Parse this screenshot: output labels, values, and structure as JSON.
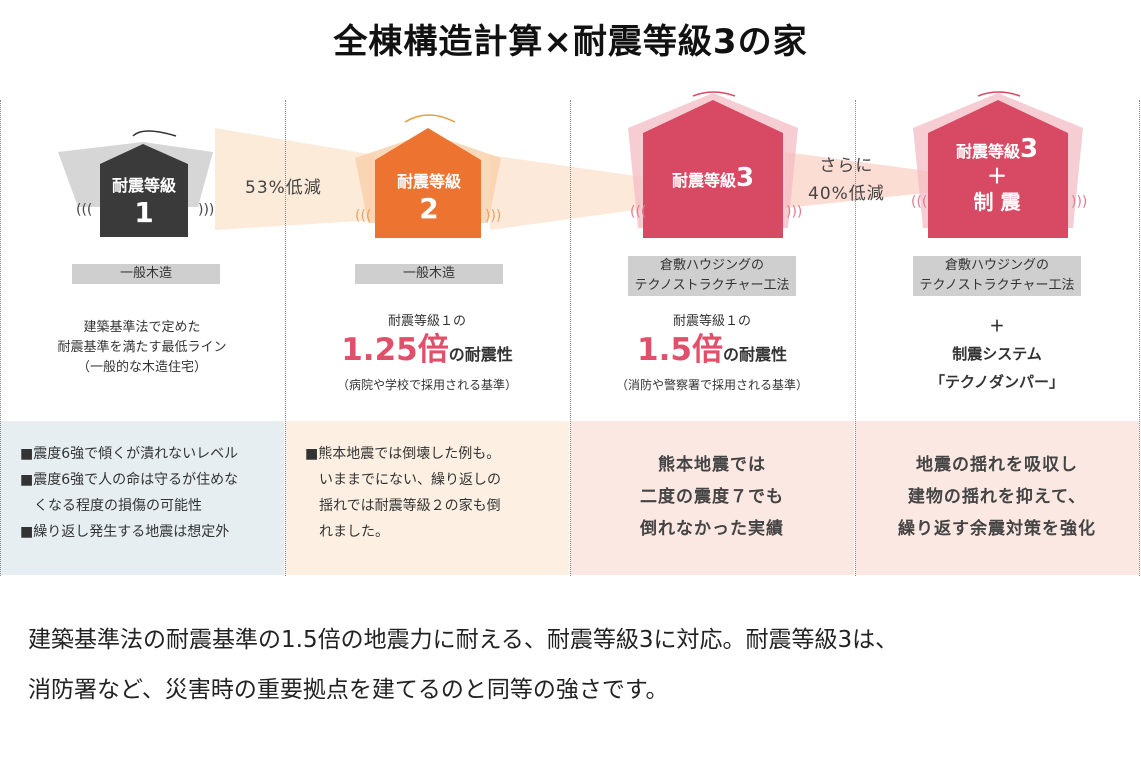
{
  "title": "全棟構造計算×耐震等級3の家",
  "colors": {
    "grade1": "#3a3a3a",
    "grade2": "#ec7330",
    "grade3": "#d84a63",
    "panel1": "#e6eef2",
    "panel2": "#fdf0e3",
    "panel3": "#fbe8e3"
  },
  "arrows": {
    "a1": "53%低減",
    "a2_l1": "さらに",
    "a2_l2": "40%低減"
  },
  "columns": [
    {
      "house_l1": "耐震等級",
      "house_l2": "1",
      "label": "一般木造",
      "desc": [
        "建築基準法で定めた",
        "耐震基準を満たす最低ライン",
        "（一般的な木造住宅）"
      ],
      "bottom": [
        "■震度6強で傾くが潰れないレベル",
        "■震度6強で人の命は守るが住めな",
        "　くなる程度の損傷の可能性",
        "■繰り返し発生する地震は想定外"
      ]
    },
    {
      "house_l1": "耐震等級",
      "house_l2": "2",
      "label": "一般木造",
      "desc_top": "耐震等級１の",
      "desc_big": "1.25倍",
      "desc_mid": "の耐震性",
      "desc_sub": "（病院や学校で採用される基準）",
      "bottom": [
        "■熊本地震では倒壊した例も。",
        "　いままでにない、繰り返しの",
        "　揺れでは耐震等級２の家も倒",
        "　れました。"
      ]
    },
    {
      "house_l1": "耐震等級",
      "house_l2": "3",
      "label_l1": "倉敷ハウジングの",
      "label_l2": "テクノストラクチャー工法",
      "desc_top": "耐震等級１の",
      "desc_big": "1.5倍",
      "desc_mid": "の耐震性",
      "desc_sub": "（消防や警察署で採用される基準）",
      "bottom": [
        "熊本地震では",
        "二度の震度７でも",
        "倒れなかった実績"
      ]
    },
    {
      "house_l1": "耐震等級",
      "house_l2": "3",
      "house_plus": "＋",
      "house_l3": "制 震",
      "label_l1": "倉敷ハウジングの",
      "label_l2": "テクノストラクチャー工法",
      "plus": "＋",
      "desc_l1": "制震システム",
      "desc_l2": "「テクノダンパー」",
      "bottom": [
        "地震の揺れを吸収し",
        "建物の揺れを抑えて、",
        "繰り返す余震対策を強化"
      ]
    }
  ],
  "footer": [
    "建築基準法の耐震基準の1.5倍の地震力に耐える、耐震等級3に対応。耐震等級3は、",
    "消防署など、災害時の重要拠点を建てるのと同等の強さです。"
  ]
}
